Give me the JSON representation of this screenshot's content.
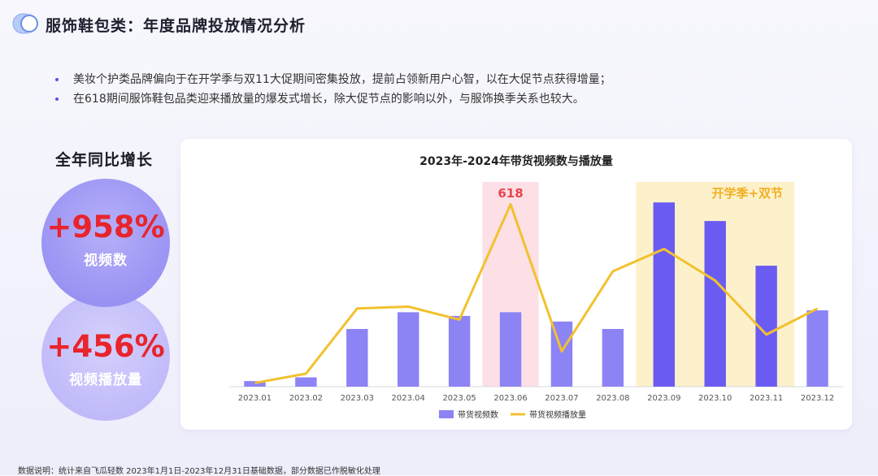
{
  "header": {
    "title": "服饰鞋包类：年度品牌投放情况分析"
  },
  "bullets": [
    "美妆个护类品牌偏向于在开学季与双11大促期间密集投放，提前占领新用户心智，以在大促节点获得增量；",
    "在618期间服饰鞋包品类迎来播放量的爆发式增长，除大促节点的影响以外，与服饰换季关系也较大。"
  ],
  "growth": {
    "title": "全年同比增长",
    "video_count": {
      "value": "+958%",
      "label": "视频数"
    },
    "play_count": {
      "value": "+456%",
      "label": "视频播放量"
    }
  },
  "chart_data": {
    "type": "bar",
    "title": "2023年-2024年带货视频数与播放量",
    "categories": [
      "2023.01",
      "2023.02",
      "2023.03",
      "2023.04",
      "2023.05",
      "2023.06",
      "2023.07",
      "2023.08",
      "2023.09",
      "2023.10",
      "2023.11",
      "2023.12"
    ],
    "series": [
      {
        "name": "带货视频数",
        "kind": "bar",
        "color": "#8c83f5",
        "values": [
          3,
          5,
          31,
          40,
          38,
          40,
          35,
          31,
          99,
          89,
          65,
          41
        ]
      },
      {
        "name": "带货视频播放量",
        "kind": "line",
        "color": "#f2c12e",
        "values": [
          2,
          7,
          42,
          43,
          36,
          98,
          19,
          62,
          74,
          57,
          28,
          42
        ]
      }
    ],
    "highlight_bar_color": "#6a5cf2",
    "highlight_bar_categories": [
      "2023.09",
      "2023.10",
      "2023.11"
    ],
    "ylim": [
      0,
      110
    ],
    "bands": [
      {
        "label": "618",
        "from": "2023.06",
        "to": "2023.06",
        "fill": "#fce0e5",
        "text_color": "#e8434d"
      },
      {
        "label": "开学季+双节",
        "from": "2023.09",
        "to": "2023.11",
        "fill": "#fdf1cc",
        "text_color": "#f0b020"
      }
    ],
    "legend": "bottom"
  },
  "footnote": "数据说明：统计来自飞瓜轻数 2023年1月1日-2023年12月31日基础数据，部分数据已作脱敏化处理"
}
